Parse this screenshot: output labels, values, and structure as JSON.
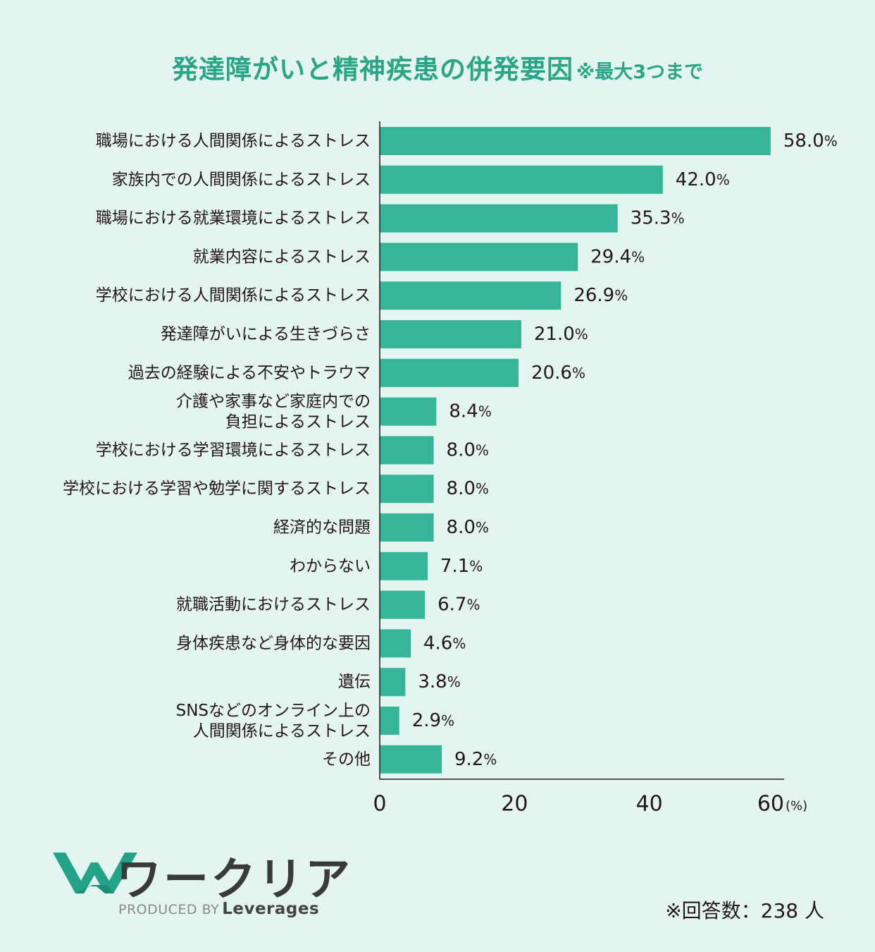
{
  "chart_data": {
    "type": "bar",
    "orientation": "horizontal",
    "title": "発達障がいと精神疾患の併発要因",
    "title_note": "※最大3つまで",
    "categories": [
      [
        "職場における人間関係によるストレス"
      ],
      [
        "家族内での人間関係によるストレス"
      ],
      [
        "職場における就業環境によるストレス"
      ],
      [
        "就業内容によるストレス"
      ],
      [
        "学校における人間関係によるストレス"
      ],
      [
        "発達障がいによる生きづらさ"
      ],
      [
        "過去の経験による不安やトラウマ"
      ],
      [
        "介護や家事など家庭内での",
        "負担によるストレス"
      ],
      [
        "学校における学習環境によるストレス"
      ],
      [
        "学校における学習や勉学に関するストレス"
      ],
      [
        "経済的な問題"
      ],
      [
        "わからない"
      ],
      [
        "就職活動におけるストレス"
      ],
      [
        "身体疾患など身体的な要因"
      ],
      [
        "遺伝"
      ],
      [
        "SNSなどのオンライン上の",
        "人間関係によるストレス"
      ],
      [
        "その他"
      ]
    ],
    "values": [
      58.0,
      42.0,
      35.3,
      29.4,
      26.9,
      21.0,
      20.6,
      8.4,
      8.0,
      8.0,
      8.0,
      7.1,
      6.7,
      4.6,
      3.8,
      2.9,
      9.2
    ],
    "value_labels": [
      "58.0",
      "42.0",
      "35.3",
      "29.4",
      "26.9",
      "21.0",
      "20.6",
      "8.4",
      "8.0",
      "8.0",
      "8.0",
      "7.1",
      "6.7",
      "4.6",
      "3.8",
      "2.9",
      "9.2"
    ],
    "value_suffix": "%",
    "xlim": [
      0,
      60
    ],
    "xticks": [
      "0",
      "20",
      "40",
      "60"
    ],
    "xunit": "(%)",
    "grid": false,
    "bar_color": "#36b598",
    "axis_color": "#231815"
  },
  "logo": {
    "name": "ワークリア",
    "produced_by": "PRODUCED BY",
    "brand": "Leverages",
    "icon": "w-logo-icon",
    "color": "#22a387"
  },
  "footnote": "※回答数：238 人"
}
